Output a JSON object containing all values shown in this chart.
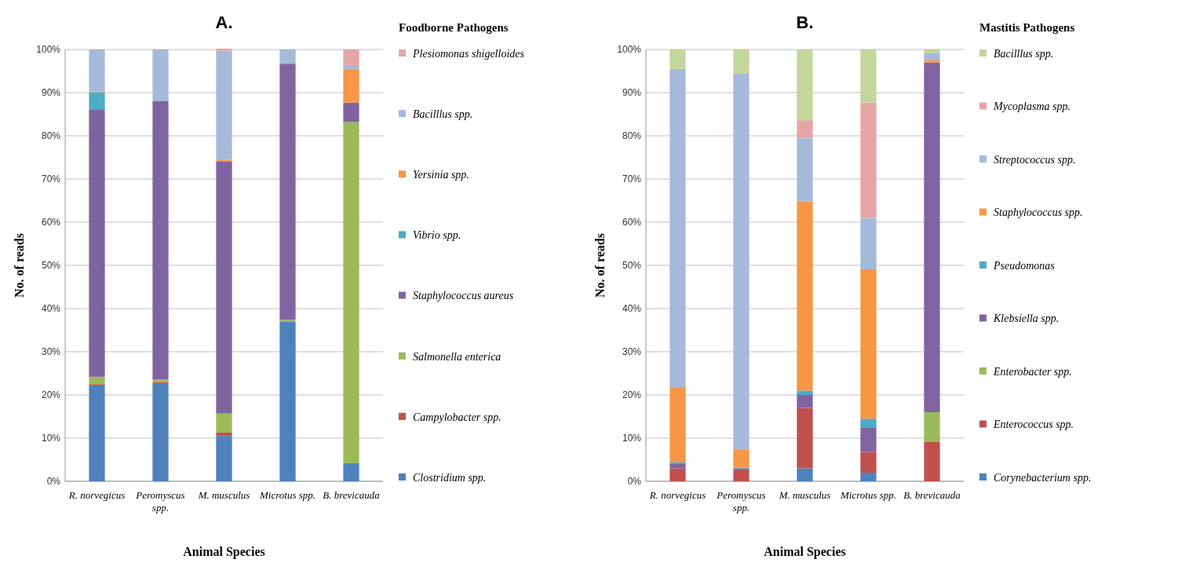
{
  "chart_data": [
    {
      "type": "bar",
      "title": "A.",
      "xlabel": "Animal Species",
      "ylabel": "No. of reads",
      "legend_title": "Foodborne Pathogens",
      "stacked": true,
      "legend": "right",
      "grid": "y",
      "ylim": [
        0,
        100
      ],
      "yticks": [
        {
          "value": 0,
          "label": "0%"
        },
        {
          "value": 10,
          "label": "10%"
        },
        {
          "value": 20,
          "label": "20%"
        },
        {
          "value": 30,
          "label": "30%"
        },
        {
          "value": 40,
          "label": "40%"
        },
        {
          "value": 50,
          "label": "50%"
        },
        {
          "value": 60,
          "label": "60%"
        },
        {
          "value": 70,
          "label": "70%"
        },
        {
          "value": 80,
          "label": "80%"
        },
        {
          "value": 90,
          "label": "90%"
        },
        {
          "value": 100,
          "label": "100%"
        }
      ],
      "categories": [
        "R. norvegicus",
        "Peromyscus spp.",
        "M. musculus",
        "Microtus spp.",
        "B. brevicauda"
      ],
      "series": [
        {
          "name": "Clostridium spp.",
          "color": "#4f81bd",
          "values": [
            22.2,
            22.7,
            10.5,
            36.9,
            4.2
          ]
        },
        {
          "name": "Campylobacter spp.",
          "color": "#c0504d",
          "values": [
            0.3,
            0.3,
            0.8,
            0,
            0
          ]
        },
        {
          "name": "Salmonella enterica",
          "color": "#9bbb59",
          "values": [
            1.7,
            0.6,
            4.4,
            0.5,
            79.0
          ]
        },
        {
          "name": "Staphylococcus aureus",
          "color": "#8064a2",
          "values": [
            61.8,
            64.4,
            58.3,
            59.3,
            4.5
          ]
        },
        {
          "name": "Vibrio spp.",
          "color": "#4bacc6",
          "values": [
            4.1,
            0,
            0,
            0,
            0
          ]
        },
        {
          "name": "Yersinia spp.",
          "color": "#f79646",
          "values": [
            0.2,
            0,
            0.4,
            0,
            7.8
          ]
        },
        {
          "name": "Bacilllus spp.",
          "color": "#a5b9da",
          "values": [
            9.7,
            12.0,
            25.3,
            3.3,
            0.9
          ]
        },
        {
          "name": "Plesiomonas shigelloides",
          "color": "#e6a5a5",
          "values": [
            0,
            0,
            0.5,
            0,
            3.6
          ]
        }
      ]
    },
    {
      "type": "bar",
      "title": "B.",
      "xlabel": "Animal Species",
      "ylabel": "No. of reads",
      "legend_title": "Mastitis Pathogens",
      "stacked": true,
      "legend": "right",
      "grid": "y",
      "ylim": [
        0,
        100
      ],
      "yticks": [
        {
          "value": 0,
          "label": "0%"
        },
        {
          "value": 10,
          "label": "10%"
        },
        {
          "value": 20,
          "label": "20%"
        },
        {
          "value": 30,
          "label": "30%"
        },
        {
          "value": 40,
          "label": "40%"
        },
        {
          "value": 50,
          "label": "50%"
        },
        {
          "value": 60,
          "label": "60%"
        },
        {
          "value": 70,
          "label": "70%"
        },
        {
          "value": 80,
          "label": "80%"
        },
        {
          "value": 90,
          "label": "90%"
        },
        {
          "value": 100,
          "label": "100%"
        }
      ],
      "categories": [
        "R. norvegicus",
        "Peromyscus spp.",
        "M. musculus",
        "Microtus spp.",
        "B. brevicauda"
      ],
      "series": [
        {
          "name": "Corynebacterium spp.",
          "color": "#4f81bd",
          "values": [
            0,
            0,
            3.0,
            2.0,
            0
          ]
        },
        {
          "name": "Enterococcus spp.",
          "color": "#c0504d",
          "values": [
            3.0,
            2.7,
            14.0,
            4.8,
            9.2
          ]
        },
        {
          "name": "Enterobacter spp.",
          "color": "#9bbb59",
          "values": [
            0,
            0,
            0,
            0,
            6.8
          ]
        },
        {
          "name": "Klebsiella spp.",
          "color": "#8064a2",
          "values": [
            1.0,
            0.3,
            3.0,
            5.7,
            81.0
          ]
        },
        {
          "name": "Pseudomonas",
          "color": "#4bacc6",
          "values": [
            0.4,
            0.2,
            1.0,
            2.0,
            0
          ]
        },
        {
          "name": "Staphylococcus spp.",
          "color": "#f79646",
          "values": [
            17.4,
            4.2,
            43.8,
            34.6,
            0.6
          ]
        },
        {
          "name": "Streptococcus spp.",
          "color": "#a5b9da",
          "values": [
            73.7,
            87.0,
            14.7,
            11.9,
            1.6
          ]
        },
        {
          "name": "Mycoplasma spp.",
          "color": "#e6a5a5",
          "values": [
            0,
            0,
            4.1,
            26.7,
            0
          ]
        },
        {
          "name": "Bacilllus spp.",
          "color": "#c3d69b",
          "values": [
            4.5,
            5.6,
            16.4,
            12.3,
            0.8
          ]
        }
      ]
    }
  ]
}
